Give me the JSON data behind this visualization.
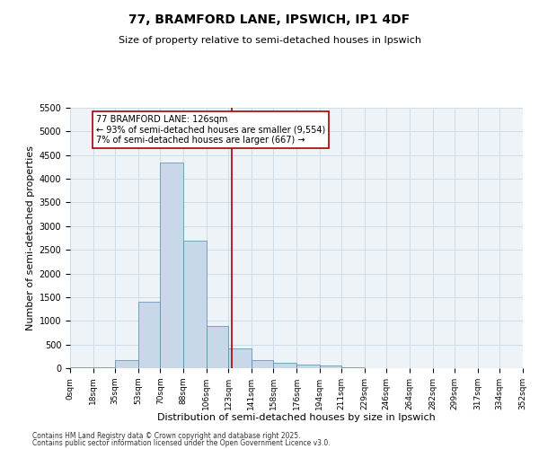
{
  "title": "77, BRAMFORD LANE, IPSWICH, IP1 4DF",
  "subtitle": "Size of property relative to semi-detached houses in Ipswich",
  "xlabel": "Distribution of semi-detached houses by size in Ipswich",
  "ylabel": "Number of semi-detached properties",
  "property_label": "77 BRAMFORD LANE: 126sqm",
  "pct_smaller": 93,
  "num_smaller": 9554,
  "pct_larger": 7,
  "num_larger": 667,
  "bin_edges": [
    0,
    18,
    35,
    53,
    70,
    88,
    106,
    123,
    141,
    158,
    176,
    194,
    211,
    229,
    246,
    264,
    282,
    299,
    317,
    334,
    352
  ],
  "bar_heights": [
    10,
    10,
    170,
    1400,
    4350,
    2700,
    900,
    420,
    170,
    120,
    80,
    60,
    25,
    5,
    2,
    1,
    1,
    0,
    0,
    0
  ],
  "bar_color": "#c8d8e8",
  "bar_edge_color": "#5588aa",
  "vline_x": 126,
  "vline_color": "#aa0000",
  "ylim": [
    0,
    5500
  ],
  "yticks": [
    0,
    500,
    1000,
    1500,
    2000,
    2500,
    3000,
    3500,
    4000,
    4500,
    5000,
    5500
  ],
  "grid_color": "#ccdde8",
  "bg_color": "#eef3f8",
  "footnote1": "Contains HM Land Registry data © Crown copyright and database right 2025.",
  "footnote2": "Contains public sector information licensed under the Open Government Licence v3.0."
}
